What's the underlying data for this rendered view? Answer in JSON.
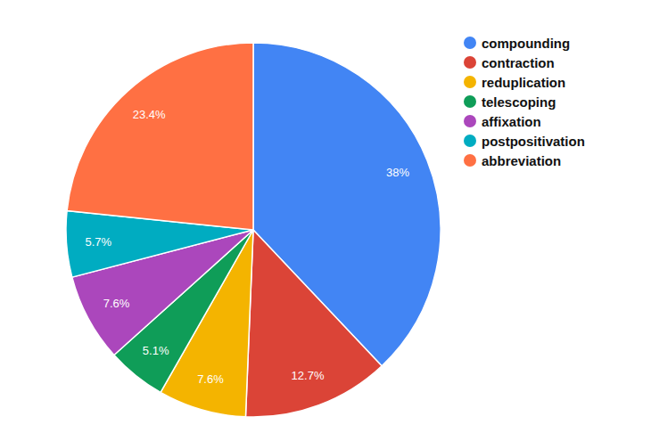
{
  "chart_data": {
    "type": "pie",
    "categories": [
      "compounding",
      "contraction",
      "reduplication",
      "telescoping",
      "affixation",
      "postpositivation",
      "abbreviation"
    ],
    "values": [
      38,
      12.7,
      7.6,
      5.1,
      7.6,
      5.7,
      23.4
    ],
    "value_labels": [
      "38%",
      "12.7%",
      "7.6%",
      "5.1%",
      "7.6%",
      "5.7%",
      "23.4%"
    ],
    "colors": [
      "#4285f4",
      "#db4437",
      "#f4b400",
      "#0f9d58",
      "#ab47bc",
      "#00acc1",
      "#ff7043"
    ],
    "data_labels": true,
    "legend": "top-right"
  }
}
